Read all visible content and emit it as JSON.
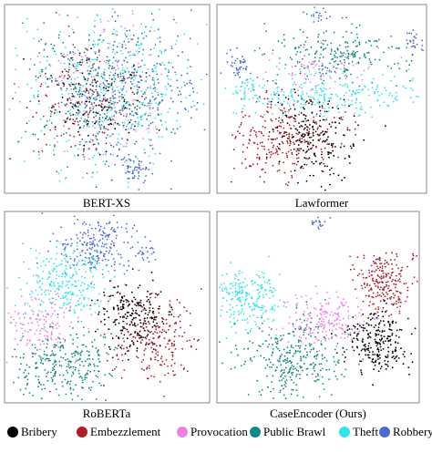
{
  "panels": [
    {
      "title": "BERT-XS"
    },
    {
      "title": "Lawformer"
    },
    {
      "title": "RoBERTa"
    },
    {
      "title": "CaseEncoder (Ours)"
    }
  ],
  "legend": [
    {
      "name": "Bribery",
      "color": "#000000"
    },
    {
      "name": "Embezzlement",
      "color": "#b01c2a"
    },
    {
      "name": "Provocation",
      "color": "#f07ee8"
    },
    {
      "name": "Public Brawl",
      "color": "#0e8a86"
    },
    {
      "name": "Theft",
      "color": "#2de6ee"
    },
    {
      "name": "Robbery",
      "color": "#4a6ad8"
    }
  ]
}
